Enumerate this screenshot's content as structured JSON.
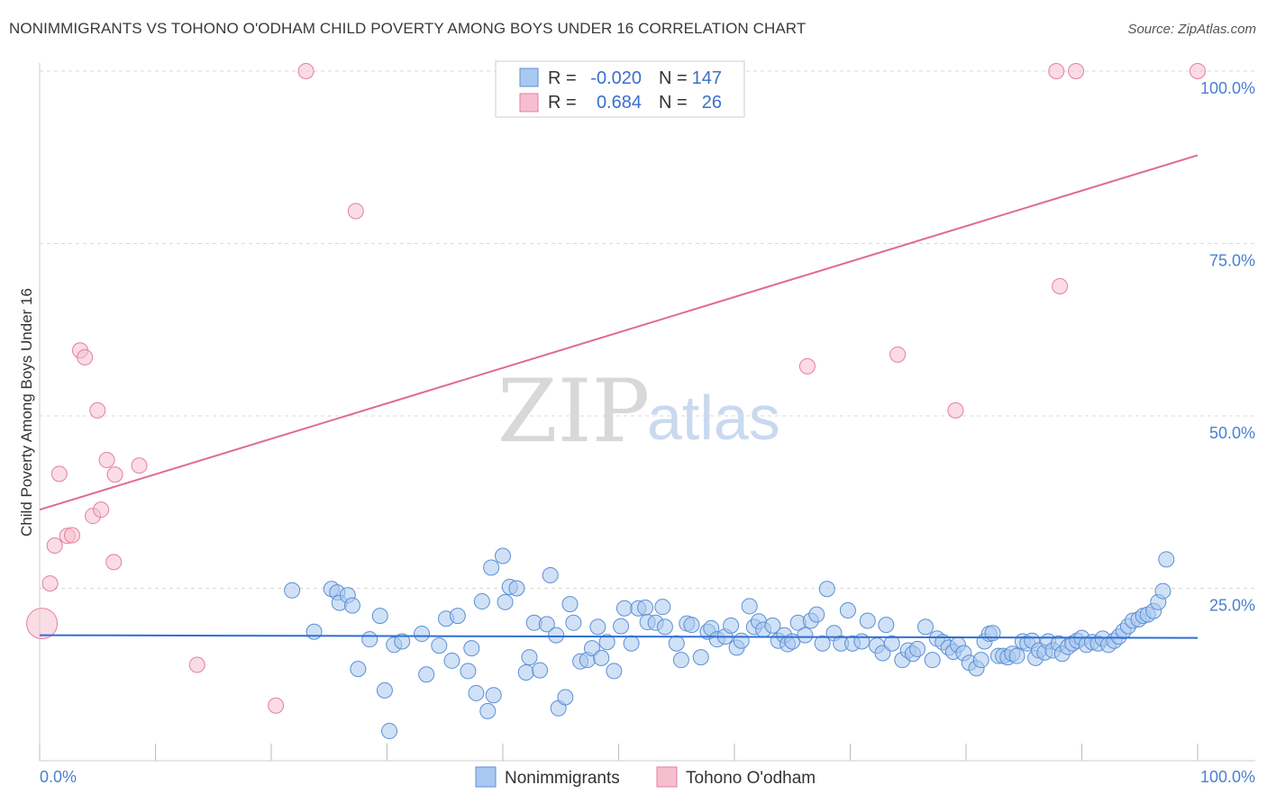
{
  "header": {
    "title": "NONIMMIGRANTS VS TOHONO O'ODHAM CHILD POVERTY AMONG BOYS UNDER 16 CORRELATION CHART",
    "source": "Source: ZipAtlas.com"
  },
  "watermark": {
    "zip": "ZIP",
    "atlas": "atlas"
  },
  "colors": {
    "blue_fill": "#a9c8ef",
    "blue_stroke": "#5b8fd6",
    "blue_line": "#2f6fd1",
    "pink_fill": "#f6bfcf",
    "pink_stroke": "#e57f9f",
    "pink_line": "#e06a92",
    "tick_text": "#4a7fd0",
    "grid": "#d9d9d9"
  },
  "legend": {
    "rows": [
      {
        "r_label": "R =",
        "r_value": "-0.020",
        "n_label": "N =",
        "n_value": "147",
        "series": "Nonimmigrants"
      },
      {
        "r_label": "R =",
        "r_value": "0.684",
        "n_label": "N =",
        "n_value": "26",
        "series": "Tohono O'odham"
      }
    ]
  },
  "chart_data": {
    "type": "scatter",
    "title": "NONIMMIGRANTS VS TOHONO O'ODHAM CHILD POVERTY AMONG BOYS UNDER 16 CORRELATION CHART",
    "xlabel": "",
    "ylabel": "Child Poverty Among Boys Under 16",
    "xlim": [
      0,
      100
    ],
    "ylim": [
      0,
      100
    ],
    "x_tick_labels": {
      "left": "0.0%",
      "right": "100.0%"
    },
    "y_ticks": [
      {
        "value": 100,
        "label": "100.0%"
      },
      {
        "value": 75,
        "label": "75.0%"
      },
      {
        "value": 50,
        "label": "50.0%"
      },
      {
        "value": 25,
        "label": "25.0%"
      }
    ],
    "grid": true,
    "legend_position": "bottom-center",
    "series": [
      {
        "name": "Nonimmigrants",
        "color": "#a9c8ef",
        "trendline": {
          "x": [
            0,
            100
          ],
          "y": [
            18.2,
            17.8
          ]
        },
        "points": [
          [
            21.8,
            24.7
          ],
          [
            23.7,
            18.7
          ],
          [
            25.2,
            24.9
          ],
          [
            25.7,
            24.4
          ],
          [
            25.9,
            22.9
          ],
          [
            26.6,
            24.0
          ],
          [
            27.0,
            22.5
          ],
          [
            27.5,
            13.3
          ],
          [
            28.5,
            17.6
          ],
          [
            29.4,
            21.0
          ],
          [
            29.8,
            10.2
          ],
          [
            30.2,
            4.3
          ],
          [
            30.6,
            16.8
          ],
          [
            31.3,
            17.3
          ],
          [
            33.0,
            18.4
          ],
          [
            33.4,
            12.5
          ],
          [
            34.5,
            16.7
          ],
          [
            35.1,
            20.6
          ],
          [
            35.6,
            14.5
          ],
          [
            36.1,
            21.0
          ],
          [
            37.0,
            13.0
          ],
          [
            37.3,
            16.3
          ],
          [
            37.7,
            9.8
          ],
          [
            38.2,
            23.1
          ],
          [
            38.7,
            7.2
          ],
          [
            39.0,
            28.0
          ],
          [
            39.2,
            9.5
          ],
          [
            40.0,
            29.7
          ],
          [
            40.2,
            23.0
          ],
          [
            40.6,
            25.2
          ],
          [
            41.2,
            25.0
          ],
          [
            42.0,
            12.8
          ],
          [
            42.3,
            15.0
          ],
          [
            42.7,
            20.0
          ],
          [
            43.2,
            13.1
          ],
          [
            43.8,
            19.8
          ],
          [
            44.1,
            26.9
          ],
          [
            44.6,
            18.2
          ],
          [
            44.8,
            7.6
          ],
          [
            45.4,
            9.2
          ],
          [
            45.8,
            22.7
          ],
          [
            46.1,
            20.0
          ],
          [
            46.7,
            14.4
          ],
          [
            47.3,
            14.6
          ],
          [
            47.7,
            16.3
          ],
          [
            48.2,
            19.4
          ],
          [
            48.5,
            14.9
          ],
          [
            49.0,
            17.2
          ],
          [
            49.6,
            13.0
          ],
          [
            50.2,
            19.5
          ],
          [
            50.5,
            22.1
          ],
          [
            51.1,
            17.0
          ],
          [
            51.7,
            22.1
          ],
          [
            52.3,
            22.2
          ],
          [
            52.5,
            20.1
          ],
          [
            53.2,
            20.0
          ],
          [
            53.8,
            22.3
          ],
          [
            54.0,
            19.4
          ],
          [
            55.0,
            17.0
          ],
          [
            55.4,
            14.6
          ],
          [
            55.9,
            19.9
          ],
          [
            56.3,
            19.7
          ],
          [
            57.1,
            15.0
          ],
          [
            57.7,
            18.7
          ],
          [
            58.0,
            19.2
          ],
          [
            58.5,
            17.6
          ],
          [
            59.2,
            18.0
          ],
          [
            59.7,
            19.6
          ],
          [
            60.2,
            16.4
          ],
          [
            60.6,
            17.4
          ],
          [
            61.3,
            22.4
          ],
          [
            61.7,
            19.4
          ],
          [
            62.1,
            20.2
          ],
          [
            62.5,
            19.0
          ],
          [
            63.3,
            19.6
          ],
          [
            63.8,
            17.4
          ],
          [
            64.3,
            18.2
          ],
          [
            64.6,
            16.9
          ],
          [
            65.0,
            17.3
          ],
          [
            65.5,
            20.0
          ],
          [
            66.1,
            18.2
          ],
          [
            66.6,
            20.3
          ],
          [
            67.1,
            21.2
          ],
          [
            67.6,
            17.0
          ],
          [
            68.0,
            24.9
          ],
          [
            68.6,
            18.5
          ],
          [
            69.2,
            17.0
          ],
          [
            69.8,
            21.8
          ],
          [
            70.2,
            17.0
          ],
          [
            71.0,
            17.3
          ],
          [
            71.5,
            20.3
          ],
          [
            72.3,
            16.7
          ],
          [
            72.8,
            15.6
          ],
          [
            73.1,
            19.7
          ],
          [
            73.6,
            17.0
          ],
          [
            74.5,
            14.6
          ],
          [
            75.0,
            16.0
          ],
          [
            75.4,
            15.5
          ],
          [
            75.8,
            16.2
          ],
          [
            76.5,
            19.4
          ],
          [
            77.1,
            14.6
          ],
          [
            77.5,
            17.7
          ],
          [
            78.0,
            17.2
          ],
          [
            78.5,
            16.4
          ],
          [
            78.9,
            15.8
          ],
          [
            79.3,
            16.8
          ],
          [
            79.8,
            15.6
          ],
          [
            80.3,
            14.2
          ],
          [
            80.9,
            13.4
          ],
          [
            81.3,
            14.6
          ],
          [
            81.6,
            17.3
          ],
          [
            82.0,
            18.4
          ],
          [
            82.3,
            18.5
          ],
          [
            82.8,
            15.2
          ],
          [
            83.2,
            15.2
          ],
          [
            83.6,
            15.0
          ],
          [
            84.0,
            15.5
          ],
          [
            84.4,
            15.2
          ],
          [
            84.9,
            17.3
          ],
          [
            85.3,
            17.0
          ],
          [
            85.7,
            17.4
          ],
          [
            86.0,
            14.9
          ],
          [
            86.3,
            16.0
          ],
          [
            86.8,
            15.7
          ],
          [
            87.1,
            17.3
          ],
          [
            87.5,
            16.0
          ],
          [
            88.0,
            17.0
          ],
          [
            88.3,
            15.5
          ],
          [
            88.8,
            16.5
          ],
          [
            89.2,
            17.0
          ],
          [
            89.6,
            17.4
          ],
          [
            90.0,
            17.8
          ],
          [
            90.4,
            16.8
          ],
          [
            90.9,
            17.2
          ],
          [
            91.4,
            17.0
          ],
          [
            91.8,
            17.7
          ],
          [
            92.3,
            16.8
          ],
          [
            92.8,
            17.4
          ],
          [
            93.2,
            18.0
          ],
          [
            93.6,
            18.8
          ],
          [
            94.0,
            19.5
          ],
          [
            94.4,
            20.3
          ],
          [
            94.9,
            20.5
          ],
          [
            95.3,
            21.0
          ],
          [
            95.7,
            21.2
          ],
          [
            96.2,
            21.7
          ],
          [
            96.6,
            23.0
          ],
          [
            97.0,
            24.6
          ],
          [
            97.3,
            29.2
          ]
        ]
      },
      {
        "name": "Tohono O'odham",
        "color": "#f6bfcf",
        "trendline": {
          "x": [
            0,
            100
          ],
          "y": [
            36.4,
            87.8
          ]
        },
        "points": [
          [
            0.2,
            19.9
          ],
          [
            0.9,
            25.7
          ],
          [
            1.3,
            31.2
          ],
          [
            1.7,
            41.6
          ],
          [
            2.4,
            32.6
          ],
          [
            2.8,
            32.7
          ],
          [
            3.5,
            59.5
          ],
          [
            3.9,
            58.5
          ],
          [
            4.6,
            35.5
          ],
          [
            5.0,
            50.8
          ],
          [
            5.3,
            36.4
          ],
          [
            5.8,
            43.6
          ],
          [
            6.5,
            41.5
          ],
          [
            6.4,
            28.8
          ],
          [
            8.6,
            42.8
          ],
          [
            13.6,
            13.9
          ],
          [
            20.4,
            8.0
          ],
          [
            23.0,
            100.0
          ],
          [
            27.3,
            79.7
          ],
          [
            66.3,
            57.2
          ],
          [
            74.1,
            58.9
          ],
          [
            79.1,
            50.8
          ],
          [
            87.8,
            100.0
          ],
          [
            88.1,
            68.8
          ],
          [
            89.5,
            100.0
          ],
          [
            100.0,
            100.0
          ]
        ]
      }
    ]
  },
  "bottom_legend": {
    "items": [
      "Nonimmigrants",
      "Tohono O'odham"
    ]
  }
}
